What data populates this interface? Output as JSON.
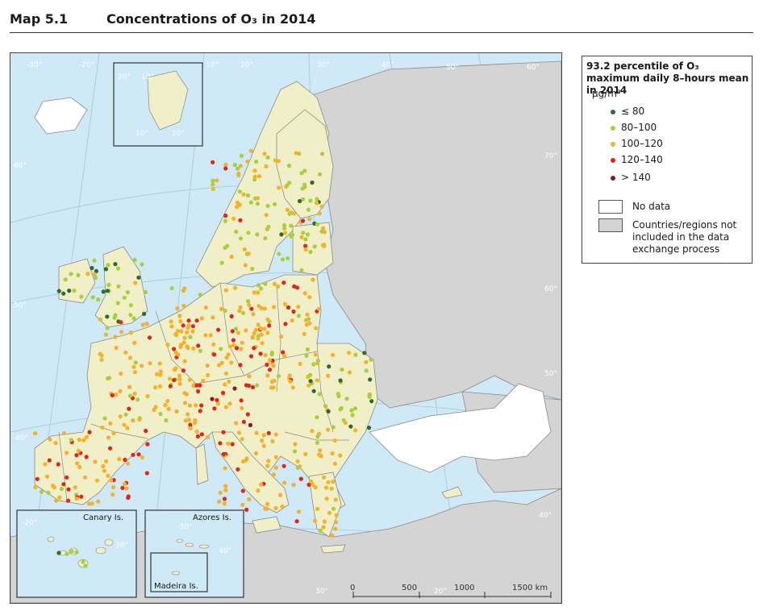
{
  "header": {
    "map_id": "Map 5.1",
    "title": "Concentrations of O₃ in 2014"
  },
  "legend": {
    "title": "93.2 percentile of O₃ maximum daily 8–hours mean in 2014",
    "unit": "μg/m³",
    "classes": [
      {
        "label": "≤ 80",
        "color": "#2e6b2e"
      },
      {
        "label": "80–100",
        "color": "#a8cf3c"
      },
      {
        "label": "100–120",
        "color": "#f5b12a"
      },
      {
        "label": "120–140",
        "color": "#e0251b"
      },
      {
        "label": "> 140",
        "color": "#8b1a1a"
      }
    ],
    "boxes": [
      {
        "label": "No data",
        "color": "#ffffff"
      },
      {
        "label": "Countries/regions not included in the data exchange process",
        "color": "#d4d4d4"
      }
    ]
  },
  "map": {
    "colors": {
      "sea": "#cfe9f7",
      "reporting_land": "#f0efc8",
      "excluded_land": "#d4d4d4",
      "no_data": "#ffffff"
    },
    "graticule_labels": [
      "-30°",
      "-20°",
      "60°",
      "50°",
      "40°",
      "10°",
      "20°",
      "30°",
      "40°",
      "50°",
      "60°",
      "70°",
      "60°",
      "50°",
      "40°",
      "30°",
      "20°",
      "30°"
    ],
    "insets": {
      "canary": "Canary Is.",
      "azores": "Azores Is.",
      "madeira": "Madeira Is.",
      "svalbard_labels": [
        "20°",
        "10°",
        "10°",
        "20°"
      ],
      "canary_labels": [
        "-20°",
        "30°"
      ],
      "azores_labels": [
        "-30°",
        "40°"
      ]
    },
    "scalebar": {
      "ticks": [
        "0",
        "500",
        "1000",
        "1500 km"
      ]
    }
  }
}
